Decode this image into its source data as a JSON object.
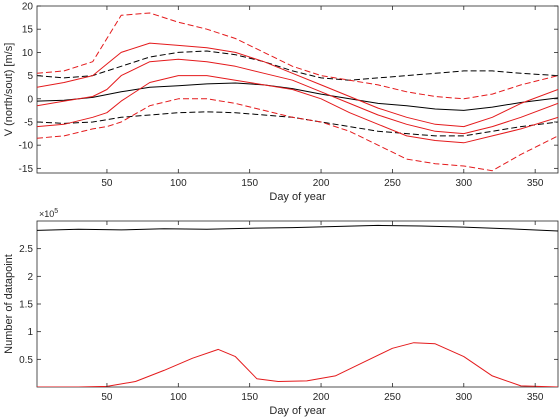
{
  "chart_data": [
    {
      "type": "line",
      "xlabel": "Day of year",
      "ylabel": "V (north/sout) [m/s]",
      "xlim": [
        1,
        366
      ],
      "ylim": [
        -16,
        20
      ],
      "xticks": [
        50,
        100,
        150,
        200,
        250,
        300,
        350
      ],
      "yticks": [
        -15,
        -10,
        -5,
        0,
        5,
        10,
        15,
        20
      ],
      "grid": false,
      "series": [
        {
          "color": "#000000",
          "style": "solid",
          "x": [
            1,
            20,
            40,
            60,
            80,
            100,
            120,
            140,
            160,
            180,
            200,
            220,
            240,
            260,
            280,
            300,
            320,
            340,
            366
          ],
          "values": [
            -0.5,
            -0.3,
            0.3,
            1.5,
            2.5,
            2.8,
            3.2,
            3.4,
            3.0,
            2.2,
            1.0,
            0.0,
            -1.0,
            -1.5,
            -2.2,
            -2.5,
            -1.8,
            -0.8,
            0.2
          ]
        },
        {
          "color": "#000000",
          "style": "dashed",
          "x": [
            1,
            20,
            40,
            60,
            80,
            100,
            120,
            140,
            160,
            180,
            200,
            220,
            240,
            260,
            280,
            300,
            320,
            340,
            366
          ],
          "values": [
            5,
            4.5,
            5,
            7,
            9,
            10,
            10.3,
            9.5,
            8,
            6,
            4.5,
            4,
            4.5,
            5,
            5.5,
            6,
            6,
            5.5,
            5
          ]
        },
        {
          "color": "#000000",
          "style": "dashed",
          "x": [
            1,
            20,
            40,
            60,
            80,
            100,
            120,
            140,
            160,
            180,
            200,
            220,
            240,
            260,
            280,
            300,
            320,
            340,
            366
          ],
          "values": [
            -5,
            -5.3,
            -5,
            -4,
            -3.5,
            -3,
            -2.8,
            -3,
            -3.5,
            -4,
            -5,
            -6,
            -7,
            -7.5,
            -8,
            -8,
            -7,
            -6,
            -5
          ]
        },
        {
          "color": "#e41a1c",
          "style": "solid",
          "x": [
            1,
            20,
            40,
            50,
            60,
            80,
            100,
            120,
            140,
            160,
            180,
            200,
            220,
            240,
            260,
            280,
            300,
            320,
            340,
            366
          ],
          "values": [
            -1.5,
            -0.5,
            0.5,
            2,
            5,
            8,
            8.5,
            8,
            7,
            5.5,
            4,
            1.5,
            -1,
            -3.5,
            -5.5,
            -7,
            -7.5,
            -6,
            -4,
            -1
          ]
        },
        {
          "color": "#e41a1c",
          "style": "solid",
          "x": [
            1,
            20,
            40,
            50,
            60,
            80,
            100,
            120,
            140,
            160,
            180,
            200,
            220,
            240,
            260,
            280,
            300,
            320,
            340,
            366
          ],
          "values": [
            2.5,
            3.5,
            5,
            7.5,
            10,
            12,
            11.5,
            11,
            10,
            8,
            5.5,
            3,
            0.5,
            -2,
            -4,
            -5.5,
            -6,
            -4,
            -1,
            2
          ]
        },
        {
          "color": "#e41a1c",
          "style": "solid",
          "x": [
            1,
            20,
            40,
            50,
            60,
            80,
            100,
            120,
            140,
            160,
            180,
            200,
            220,
            240,
            260,
            280,
            300,
            320,
            340,
            366
          ],
          "values": [
            -6,
            -5.5,
            -4,
            -3,
            -0.5,
            3.5,
            5,
            5,
            4,
            3,
            2,
            0,
            -3,
            -5.5,
            -8,
            -9,
            -9.5,
            -8,
            -6.5,
            -4
          ]
        },
        {
          "color": "#e41a1c",
          "style": "dashed",
          "x": [
            1,
            20,
            40,
            50,
            60,
            80,
            100,
            120,
            140,
            160,
            180,
            200,
            220,
            240,
            260,
            280,
            300,
            320,
            340,
            366
          ],
          "values": [
            5.5,
            6,
            8,
            13,
            18,
            18.5,
            16.5,
            15,
            13,
            10,
            7,
            5,
            4,
            3,
            1.5,
            0.5,
            0,
            1,
            3,
            5
          ]
        },
        {
          "color": "#e41a1c",
          "style": "dashed",
          "x": [
            1,
            20,
            40,
            50,
            60,
            80,
            100,
            120,
            140,
            160,
            180,
            200,
            220,
            240,
            260,
            280,
            300,
            320,
            340,
            366
          ],
          "values": [
            -8.5,
            -8,
            -6.5,
            -6,
            -5,
            -1.5,
            0,
            0,
            -1,
            -2.5,
            -4,
            -5,
            -7,
            -10,
            -13,
            -14,
            -14.5,
            -15.5,
            -12,
            -8
          ]
        }
      ]
    },
    {
      "type": "line",
      "xlabel": "Day of year",
      "ylabel": "Number of datapoint",
      "xlim": [
        1,
        366
      ],
      "ylim": [
        0,
        300000
      ],
      "xticks": [
        50,
        100,
        150,
        200,
        250,
        300,
        350
      ],
      "ytick_labels": [
        "0.5",
        "1",
        "1.5",
        "2",
        "2.5"
      ],
      "yticks": [
        50000,
        100000,
        150000,
        200000,
        250000
      ],
      "exponent_label": "×10",
      "exponent_power": "5",
      "grid": false,
      "series": [
        {
          "color": "#000000",
          "style": "solid",
          "x": [
            1,
            30,
            60,
            90,
            120,
            150,
            180,
            210,
            240,
            270,
            300,
            330,
            366
          ],
          "values": [
            283000,
            285000,
            284000,
            286000,
            285000,
            287000,
            288000,
            290000,
            292000,
            291000,
            289000,
            286000,
            282000
          ]
        },
        {
          "color": "#e41a1c",
          "style": "solid",
          "x": [
            1,
            30,
            50,
            70,
            90,
            110,
            128,
            140,
            155,
            170,
            190,
            210,
            230,
            250,
            265,
            280,
            300,
            320,
            340,
            366
          ],
          "values": [
            0,
            0,
            1000,
            10000,
            30000,
            52000,
            68000,
            55000,
            15000,
            10000,
            11000,
            20000,
            45000,
            70000,
            80000,
            78000,
            55000,
            20000,
            2000,
            0
          ]
        }
      ]
    }
  ]
}
